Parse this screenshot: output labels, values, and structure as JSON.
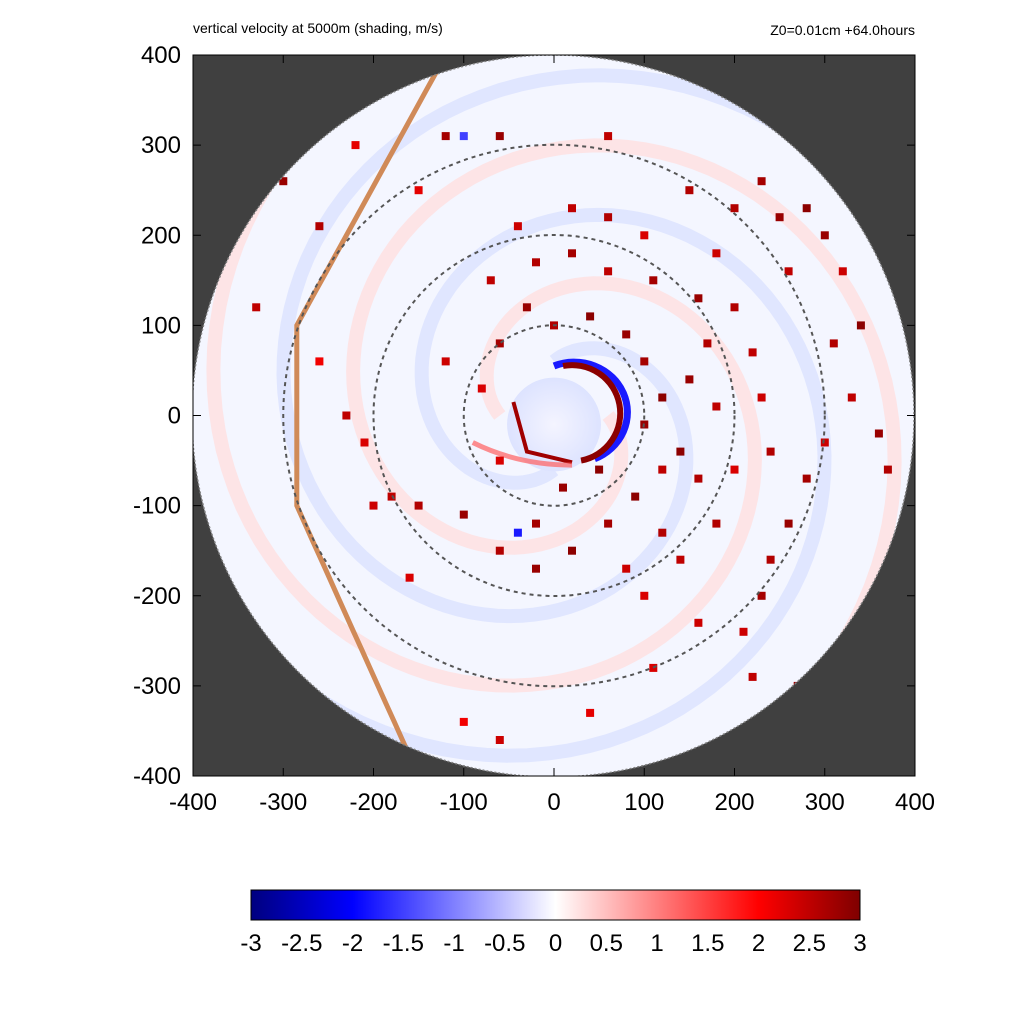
{
  "chart_data": {
    "type": "heatmap",
    "title": "vertical velocity at 5000m (shading, m/s)",
    "subtitle": "Z0=0.01cm  +64.0hours",
    "x_ticks": [
      "-400",
      "-300",
      "-200",
      "-100",
      "0",
      "100",
      "200",
      "300",
      "400"
    ],
    "y_ticks": [
      "400",
      "300",
      "200",
      "100",
      "0",
      "-100",
      "-200",
      "-300",
      "-400"
    ],
    "xlim": [
      -400,
      400
    ],
    "ylim": [
      -400,
      400
    ],
    "domain_radius": 400,
    "range_rings": [
      100,
      200,
      300
    ],
    "colorbar": {
      "range": [
        -3,
        3
      ],
      "ticks": [
        "-3",
        "-2.5",
        "-2",
        "-1.5",
        "-1",
        "-0.5",
        "0",
        "0.5",
        "1",
        "1.5",
        "2",
        "2.5",
        "3"
      ],
      "colors": [
        "#00007f",
        "#0000ff",
        "#ffffff",
        "#ff0000",
        "#7f0000"
      ]
    },
    "background_color": "#404040",
    "eyewall_center": [
      0,
      -10
    ],
    "convective_cells": [
      [
        -300,
        260,
        2.8
      ],
      [
        -330,
        120,
        2.5
      ],
      [
        -260,
        210,
        2.6
      ],
      [
        -120,
        310,
        2.7
      ],
      [
        -100,
        310,
        -1.5
      ],
      [
        -60,
        310,
        2.8
      ],
      [
        -220,
        300,
        2.2
      ],
      [
        60,
        310,
        2.5
      ],
      [
        150,
        250,
        2.6
      ],
      [
        200,
        230,
        2.6
      ],
      [
        250,
        220,
        2.8
      ],
      [
        280,
        230,
        2.9
      ],
      [
        230,
        260,
        2.7
      ],
      [
        300,
        200,
        2.8
      ],
      [
        320,
        160,
        2.4
      ],
      [
        340,
        100,
        2.9
      ],
      [
        310,
        80,
        2.6
      ],
      [
        330,
        20,
        2.5
      ],
      [
        360,
        -20,
        2.8
      ],
      [
        370,
        -60,
        2.6
      ],
      [
        300,
        -30,
        2.4
      ],
      [
        280,
        -70,
        2.7
      ],
      [
        260,
        -120,
        2.8
      ],
      [
        240,
        -160,
        2.6
      ],
      [
        230,
        -200,
        2.7
      ],
      [
        210,
        -240,
        2.4
      ],
      [
        220,
        -290,
        2.5
      ],
      [
        270,
        -300,
        2.8
      ],
      [
        160,
        -230,
        2.4
      ],
      [
        110,
        -280,
        2.3
      ],
      [
        40,
        -330,
        2.2
      ],
      [
        -60,
        -360,
        2.4
      ],
      [
        -100,
        -340,
        2.1
      ],
      [
        100,
        -200,
        2.3
      ],
      [
        120,
        -130,
        2.6
      ],
      [
        90,
        -90,
        2.9
      ],
      [
        60,
        -120,
        2.7
      ],
      [
        20,
        -150,
        2.9
      ],
      [
        -20,
        -170,
        2.8
      ],
      [
        -60,
        -150,
        2.6
      ],
      [
        -100,
        -110,
        2.8
      ],
      [
        -150,
        -100,
        2.6
      ],
      [
        -180,
        -90,
        2.5
      ],
      [
        -200,
        -100,
        2.4
      ],
      [
        -160,
        -180,
        2.3
      ],
      [
        -230,
        0,
        2.5
      ],
      [
        -210,
        -30,
        2.3
      ],
      [
        -120,
        60,
        2.4
      ],
      [
        -80,
        30,
        2.3
      ],
      [
        -60,
        80,
        2.7
      ],
      [
        -30,
        120,
        2.8
      ],
      [
        0,
        100,
        2.6
      ],
      [
        40,
        110,
        2.9
      ],
      [
        80,
        90,
        2.8
      ],
      [
        100,
        60,
        2.7
      ],
      [
        120,
        20,
        2.9
      ],
      [
        150,
        40,
        2.8
      ],
      [
        170,
        80,
        2.6
      ],
      [
        160,
        130,
        2.8
      ],
      [
        110,
        150,
        2.7
      ],
      [
        60,
        160,
        2.5
      ],
      [
        20,
        180,
        2.7
      ],
      [
        -20,
        170,
        2.6
      ],
      [
        -70,
        150,
        2.5
      ],
      [
        100,
        -10,
        2.8
      ],
      [
        140,
        -40,
        2.9
      ],
      [
        160,
        -70,
        2.6
      ],
      [
        120,
        -60,
        2.5
      ],
      [
        180,
        180,
        2.4
      ],
      [
        60,
        220,
        2.6
      ],
      [
        20,
        230,
        2.5
      ],
      [
        -40,
        210,
        2.4
      ],
      [
        100,
        200,
        2.3
      ],
      [
        200,
        120,
        2.6
      ],
      [
        220,
        70,
        2.5
      ],
      [
        230,
        20,
        2.4
      ],
      [
        240,
        -40,
        2.6
      ],
      [
        200,
        -60,
        2.3
      ],
      [
        180,
        10,
        2.5
      ],
      [
        -20,
        -120,
        2.7
      ],
      [
        -40,
        -130,
        -1.8
      ],
      [
        50,
        -60,
        2.9
      ],
      [
        10,
        -80,
        2.8
      ],
      [
        -150,
        250,
        2.2
      ],
      [
        260,
        160,
        2.5
      ],
      [
        80,
        -170,
        2.4
      ],
      [
        140,
        -160,
        2.5
      ],
      [
        180,
        -120,
        2.6
      ],
      [
        -260,
        60,
        2.1
      ],
      [
        -60,
        -50,
        2.3
      ]
    ]
  }
}
